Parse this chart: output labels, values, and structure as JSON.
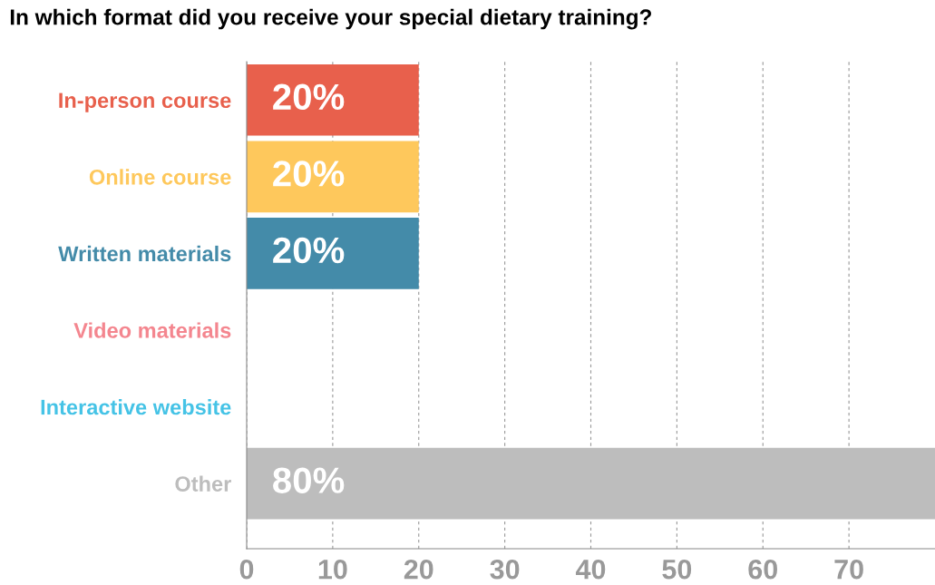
{
  "chart_data": {
    "type": "bar",
    "orientation": "horizontal",
    "title": "In which format did you receive your special dietary training?",
    "categories": [
      "In-person course",
      "Online course",
      "Written materials",
      "Video materials",
      "Interactive website",
      "Other"
    ],
    "values": [
      20,
      20,
      20,
      0,
      0,
      80
    ],
    "value_labels": [
      "20%",
      "20%",
      "20%",
      null,
      null,
      "80%"
    ],
    "colors": [
      "#e8604c",
      "#fec85c",
      "#448ba9",
      "#f4868f",
      "#45c3e6",
      "#bdbdbd"
    ],
    "xlim": [
      0,
      80
    ],
    "xticks": [
      0,
      10,
      20,
      30,
      40,
      50,
      60,
      70
    ],
    "grid": "x",
    "legend": false
  }
}
